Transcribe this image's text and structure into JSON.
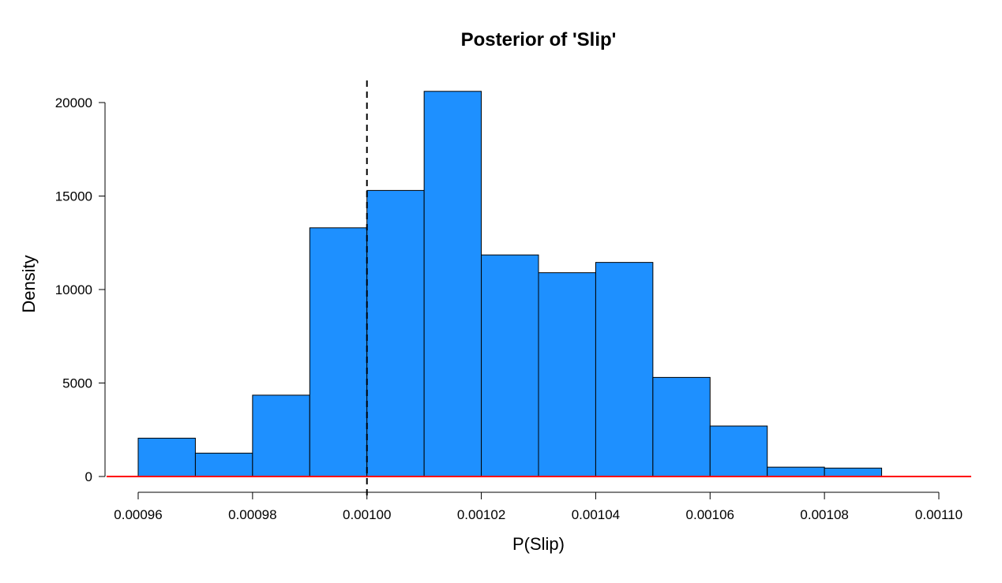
{
  "chart_data": {
    "type": "bar",
    "title": "Posterior of 'Slip'",
    "xlabel": "P(Slip)",
    "ylabel": "Density",
    "xlim": [
      0.00096,
      0.0011
    ],
    "ylim": [
      0,
      20000
    ],
    "bin_width": 1e-05,
    "bins": [
      {
        "start": 0.00096,
        "end": 0.00097,
        "density": 2050
      },
      {
        "start": 0.00097,
        "end": 0.00098,
        "density": 1250
      },
      {
        "start": 0.00098,
        "end": 0.00099,
        "density": 4350
      },
      {
        "start": 0.00099,
        "end": 0.001,
        "density": 13300
      },
      {
        "start": 0.001,
        "end": 0.00101,
        "density": 15300
      },
      {
        "start": 0.00101,
        "end": 0.00102,
        "density": 20600
      },
      {
        "start": 0.00102,
        "end": 0.00103,
        "density": 11850
      },
      {
        "start": 0.00103,
        "end": 0.00104,
        "density": 10900
      },
      {
        "start": 0.00104,
        "end": 0.00105,
        "density": 11450
      },
      {
        "start": 0.00105,
        "end": 0.00106,
        "density": 5300
      },
      {
        "start": 0.00106,
        "end": 0.00107,
        "density": 2700
      },
      {
        "start": 0.00107,
        "end": 0.00108,
        "density": 500
      },
      {
        "start": 0.00108,
        "end": 0.00109,
        "density": 450
      }
    ],
    "x_ticks": [
      0.00096,
      0.00098,
      0.001,
      0.00102,
      0.00104,
      0.00106,
      0.00108,
      0.0011
    ],
    "x_tick_labels": [
      "0.00096",
      "0.00098",
      "0.00100",
      "0.00102",
      "0.00104",
      "0.00106",
      "0.00108",
      "0.00110"
    ],
    "y_ticks": [
      0,
      5000,
      10000,
      15000,
      20000
    ],
    "y_tick_labels": [
      "0",
      "5000",
      "10000",
      "15000",
      "20000"
    ],
    "reference_line": {
      "x": 0.001,
      "style": "dashed",
      "color": "#000000"
    },
    "baseline_line": {
      "y": 0,
      "color": "#ff0000"
    },
    "bar_color": "#1e90ff",
    "bar_edge_color": "#000000",
    "grid": false,
    "legend": "none"
  }
}
